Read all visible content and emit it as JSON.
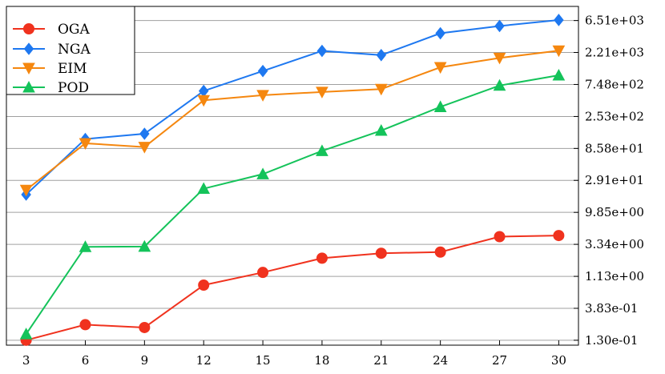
{
  "chart_data": {
    "type": "line",
    "title": "",
    "xlabel": "",
    "ylabel": "",
    "y_scale": "log",
    "x_ticks": [
      3,
      6,
      9,
      12,
      15,
      18,
      21,
      24,
      27,
      30
    ],
    "x_tick_labels": [
      "3",
      "6",
      "9",
      "12",
      "15",
      "18",
      "21",
      "24",
      "27",
      "30"
    ],
    "y_ticks": [
      0.13,
      0.383,
      1.13,
      3.34,
      9.85,
      29.1,
      85.8,
      253,
      748,
      2210,
      6510
    ],
    "y_tick_labels": [
      "1.30e-01",
      "3.83e-01",
      "1.13e+00",
      "3.34e+00",
      "9.85e+00",
      "2.91e+01",
      "8.58e+01",
      "2.53e+02",
      "7.48e+02",
      "2.21e+03",
      "6.51e+03"
    ],
    "ylim": [
      0.11,
      10500
    ],
    "xlim": [
      2,
      31
    ],
    "y_axis_side": "right",
    "grid": "horizontal",
    "legend_position": "top-left",
    "series": [
      {
        "name": "OGA",
        "color": "#f0321e",
        "marker": "circle",
        "x": [
          3,
          6,
          9,
          12,
          15,
          18,
          21,
          24,
          27,
          30
        ],
        "values": [
          0.13,
          0.22,
          0.2,
          0.84,
          1.29,
          2.09,
          2.47,
          2.57,
          4.33,
          4.5
        ]
      },
      {
        "name": "NGA",
        "color": "#1e78f0",
        "marker": "diamond",
        "x": [
          3,
          6,
          9,
          12,
          15,
          18,
          21,
          24,
          27,
          30
        ],
        "values": [
          18,
          118,
          141,
          600,
          1179,
          2330,
          2020,
          4230,
          5410,
          6630
        ]
      },
      {
        "name": "EIM",
        "color": "#f5870f",
        "marker": "triangle-down",
        "x": [
          3,
          6,
          9,
          12,
          15,
          18,
          21,
          24,
          27,
          30
        ],
        "values": [
          21,
          102,
          90,
          438,
          520,
          580,
          640,
          1337,
          1835,
          2350
        ]
      },
      {
        "name": "POD",
        "color": "#14c35a",
        "marker": "triangle-up",
        "x": [
          3,
          6,
          9,
          12,
          15,
          18,
          21,
          24,
          27,
          30
        ],
        "values": [
          0.16,
          3.07,
          3.1,
          22,
          36,
          79,
          157,
          350,
          721,
          1020
        ]
      }
    ]
  }
}
